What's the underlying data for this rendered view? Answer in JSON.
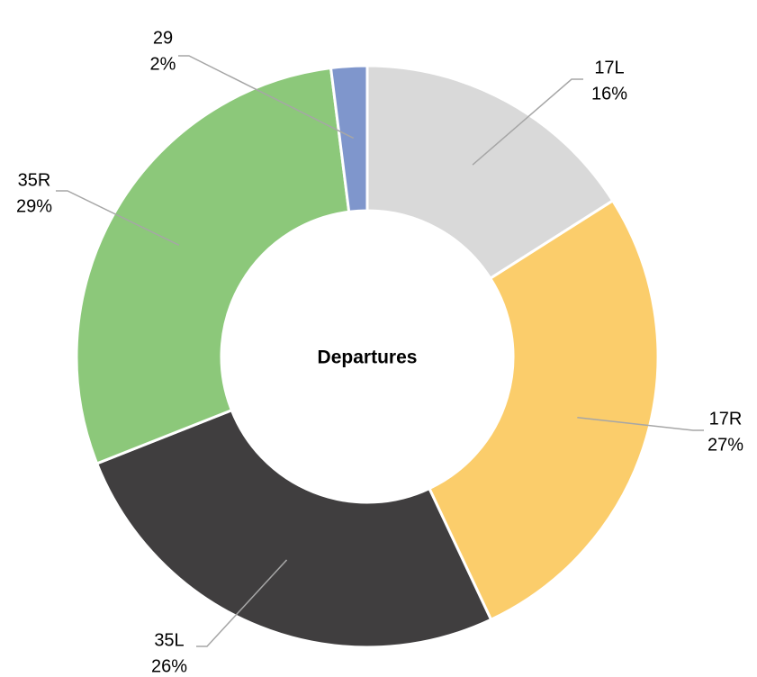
{
  "chart_data": {
    "type": "pie",
    "title": "Departures",
    "categories": [
      "17L",
      "17R",
      "35L",
      "35R",
      "29"
    ],
    "values": [
      16,
      27,
      26,
      29,
      2
    ],
    "value_labels": [
      "16%",
      "27%",
      "26%",
      "29%",
      "2%"
    ],
    "colors": [
      "#d9d9d9",
      "#fbcd6b",
      "#403e3f",
      "#8cc87a",
      "#7f96cc"
    ]
  }
}
